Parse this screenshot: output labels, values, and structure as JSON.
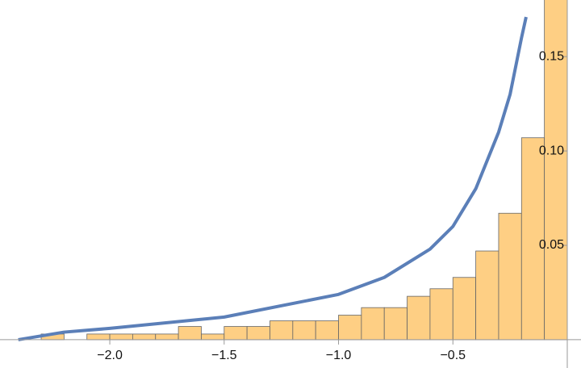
{
  "chart_data": [
    {
      "type": "histogram",
      "bins": [
        -2.3,
        -2.2,
        -2.1,
        -2.0,
        -1.9,
        -1.8,
        -1.7,
        -1.6,
        -1.5,
        -1.4,
        -1.3,
        -1.2,
        -1.1,
        -1.0,
        -0.9,
        -0.8,
        -0.7,
        -0.6,
        -0.5,
        -0.4,
        -0.3,
        -0.2,
        -0.1,
        0
      ],
      "values": [
        0.003,
        0,
        0.003,
        0.003,
        0.003,
        0.003,
        0.007,
        0.003,
        0.007,
        0.007,
        0.01,
        0.01,
        0.01,
        0.013,
        0.017,
        0.017,
        0.023,
        0.027,
        0.033,
        0.047,
        0.067,
        0.107,
        0.19
      ],
      "color": "#fecf84",
      "xlim": [
        -2.48,
        0.06
      ],
      "ylim": [
        -0.015,
        0.18
      ],
      "xticks": [
        {
          "value": -2.0,
          "label": "−2.0"
        },
        {
          "value": -1.5,
          "label": "−1.5"
        },
        {
          "value": -1.0,
          "label": "−1.0"
        },
        {
          "value": -0.5,
          "label": "−0.5"
        }
      ],
      "yticks": [
        {
          "value": 0.05,
          "label": "0.05"
        },
        {
          "value": 0.1,
          "label": "0.10"
        },
        {
          "value": 0.15,
          "label": "0.15"
        }
      ]
    },
    {
      "type": "line",
      "x": [
        -2.4,
        -2.2,
        -2.0,
        -1.5,
        -1.0,
        -0.8,
        -0.6,
        -0.5,
        -0.4,
        -0.3,
        -0.25,
        -0.2,
        -0.18
      ],
      "values": [
        0.0,
        0.004,
        0.006,
        0.012,
        0.024,
        0.033,
        0.048,
        0.06,
        0.08,
        0.11,
        0.13,
        0.16,
        0.171
      ],
      "color": "#5b7fb8"
    }
  ]
}
